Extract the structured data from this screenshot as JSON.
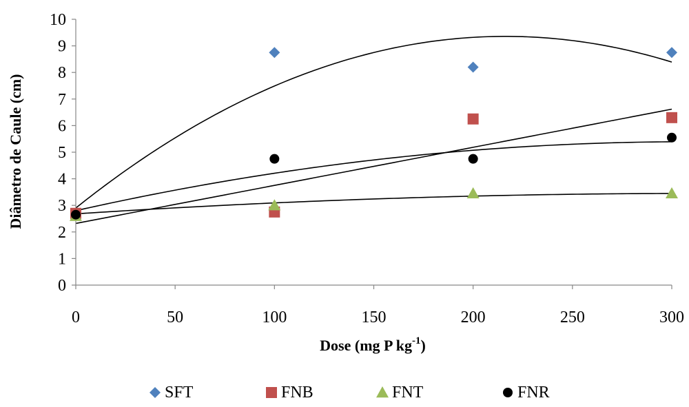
{
  "chart_data": {
    "type": "scatter",
    "xlabel": "Dose (mg P kg",
    "xlabel_sup": "-1",
    "xlabel_end": ")",
    "ylabel": "Diâmetro de Caule (cm)",
    "xlim": [
      0,
      300
    ],
    "ylim": [
      0,
      10
    ],
    "xticks": [
      0,
      50,
      100,
      150,
      200,
      250,
      300
    ],
    "yticks": [
      0,
      1,
      2,
      3,
      4,
      5,
      6,
      7,
      8,
      9,
      10
    ],
    "grid": false,
    "legend_position": "bottom",
    "series": [
      {
        "name": "SFT",
        "marker": "diamond",
        "color": "#4F81BD",
        "x": [
          0,
          100,
          200,
          300
        ],
        "y": [
          2.65,
          8.75,
          8.2,
          8.75
        ]
      },
      {
        "name": "FNB",
        "marker": "square",
        "color": "#C0504D",
        "x": [
          0,
          100,
          200,
          300
        ],
        "y": [
          2.7,
          2.75,
          6.25,
          6.3
        ]
      },
      {
        "name": "FNT",
        "marker": "triangle",
        "color": "#9BBB59",
        "x": [
          0,
          100,
          200,
          300
        ],
        "y": [
          2.6,
          3.0,
          3.45,
          3.45
        ]
      },
      {
        "name": "FNR",
        "marker": "circle",
        "color": "#000000",
        "x": [
          0,
          100,
          200,
          300
        ],
        "y": [
          2.65,
          4.75,
          4.75,
          5.55
        ]
      }
    ],
    "trendlines": [
      {
        "series": "SFT",
        "type": "polynomial",
        "coef": [
          2.9,
          0.0597,
          -0.000138
        ]
      },
      {
        "series": "FNB",
        "type": "polynomial",
        "coef": [
          2.32,
          0.0143,
          1e-07
        ]
      },
      {
        "series": "FNT",
        "type": "polynomial",
        "coef": [
          2.68,
          0.0049,
          -7.8e-06
        ]
      },
      {
        "series": "FNR",
        "type": "polynomial",
        "coef": [
          2.8,
          0.0168,
          -2.72e-05
        ]
      }
    ]
  }
}
